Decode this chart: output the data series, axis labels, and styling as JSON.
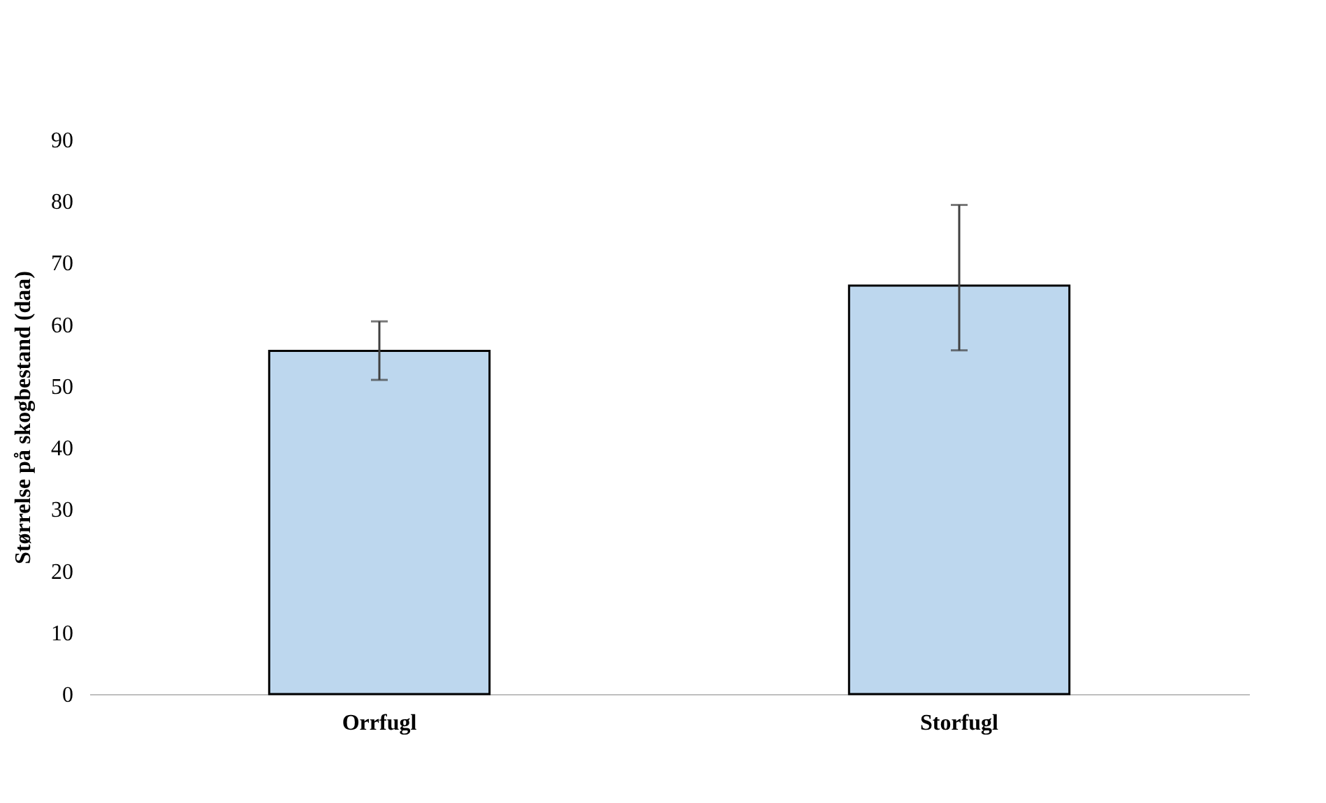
{
  "chart_data": {
    "type": "bar",
    "ylabel": "Størrelse på skogbestand (daa)",
    "categories": [
      "Orrfugl",
      "Storfugl"
    ],
    "values": [
      55.7,
      66.3
    ],
    "errors": [
      [
        51,
        60.5
      ],
      [
        55.8,
        79.4
      ]
    ],
    "color": "#bdd7ee",
    "ylim": [
      0,
      90
    ],
    "yticks": [
      0,
      10,
      20,
      30,
      40,
      50,
      60,
      70,
      80,
      90
    ],
    "grid": false
  }
}
